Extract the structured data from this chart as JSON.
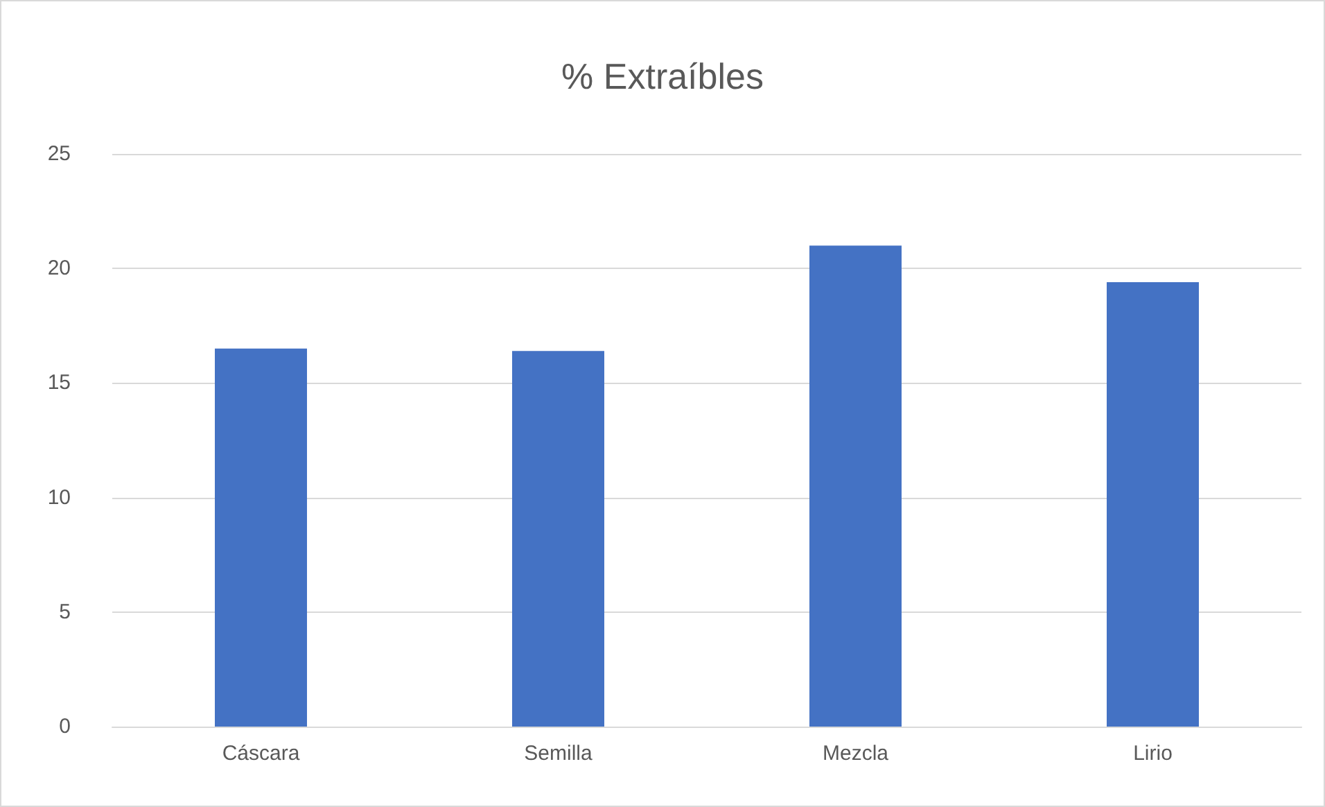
{
  "chart_data": {
    "type": "bar",
    "title": "% Extraíbles",
    "categories": [
      "Cáscara",
      "Semilla",
      "Mezcla",
      "Lirio"
    ],
    "values": [
      16.5,
      16.4,
      21.0,
      19.4
    ],
    "color": "#4472c4",
    "ylim": [
      0,
      25
    ],
    "yticks": [
      0,
      5,
      10,
      15,
      20,
      25
    ],
    "grid": "y"
  }
}
